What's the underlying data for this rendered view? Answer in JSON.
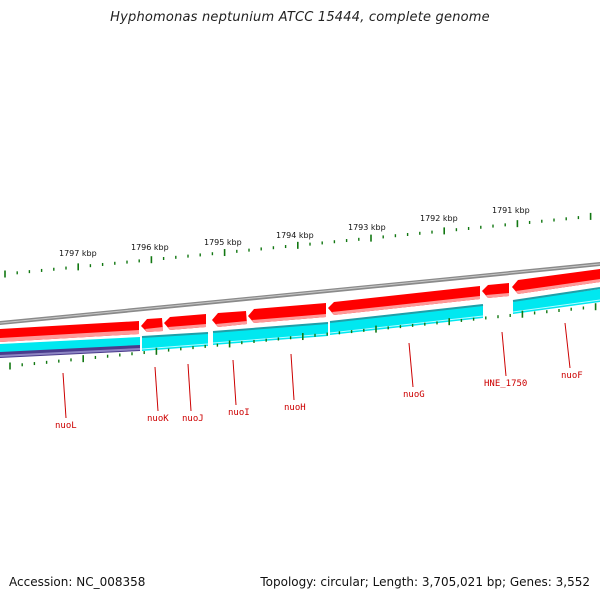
{
  "title": "Hyphomonas neptunium ATCC 15444, complete genome",
  "footer": {
    "accession": "Accession: NC_008358",
    "summary": "Topology: circular; Length: 3,705,021 bp; Genes: 3,552"
  },
  "colors": {
    "gene_forward": "#ff0000",
    "gene_highlight": "#ff8080",
    "cds_cyan": "#00e5ee",
    "cds_teal": "#20a8a8",
    "backbone": "#888888",
    "tick": "#117711",
    "label": "#cc0000",
    "purple_track": "#4a3a8a"
  },
  "position_ticks": [
    {
      "label": "1797 kbp"
    },
    {
      "label": "1796 kbp"
    },
    {
      "label": "1795 kbp"
    },
    {
      "label": "1794 kbp"
    },
    {
      "label": "1793 kbp"
    },
    {
      "label": "1792 kbp"
    },
    {
      "label": "1791 kbp"
    }
  ],
  "genes": [
    {
      "name": "nuoL"
    },
    {
      "name": "nuoK"
    },
    {
      "name": "nuoJ"
    },
    {
      "name": "nuoI"
    },
    {
      "name": "nuoH"
    },
    {
      "name": "nuoG"
    },
    {
      "name": "HNE_1750"
    },
    {
      "name": "nuoF"
    }
  ]
}
